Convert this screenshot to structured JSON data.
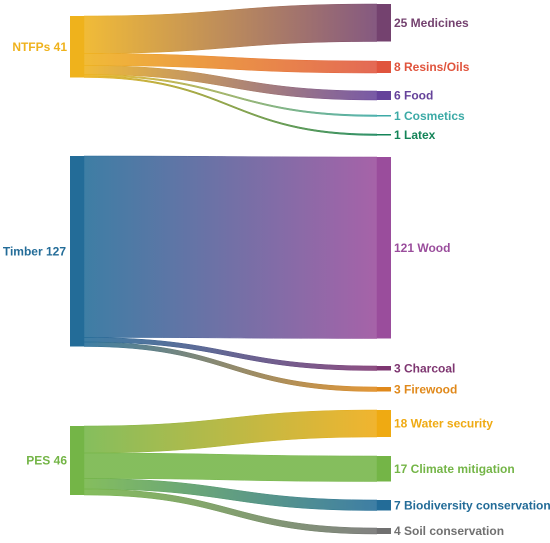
{
  "chart_data": {
    "type": "sankey",
    "sources": [
      {
        "id": "ntfps",
        "label": "NTFPs 41",
        "name": "NTFPs",
        "value": 41,
        "color": "#EFB21C",
        "targets": [
          {
            "id": "medicines",
            "label": "25 Medicines",
            "name": "Medicines",
            "value": 25,
            "color": "#74426F"
          },
          {
            "id": "resins",
            "label": "8 Resins/Oils",
            "name": "Resins/Oils",
            "value": 8,
            "color": "#E0543D"
          },
          {
            "id": "food",
            "label": "6 Food",
            "name": "Food",
            "value": 6,
            "color": "#65429A"
          },
          {
            "id": "cosmetics",
            "label": "1 Cosmetics",
            "name": "Cosmetics",
            "value": 1,
            "color": "#3CAAA6"
          },
          {
            "id": "latex",
            "label": "1 Latex",
            "name": "Latex",
            "value": 1,
            "color": "#148458"
          }
        ]
      },
      {
        "id": "timber",
        "label": "Timber 127",
        "name": "Timber",
        "value": 127,
        "color": "#236C98",
        "targets": [
          {
            "id": "wood",
            "label": "121 Wood",
            "name": "Wood",
            "value": 121,
            "color": "#9A4D9C"
          },
          {
            "id": "charcoal",
            "label": "3 Charcoal",
            "name": "Charcoal",
            "value": 3,
            "color": "#7E3671"
          },
          {
            "id": "firewood",
            "label": "3 Firewood",
            "name": "Firewood",
            "value": 3,
            "color": "#E0891B"
          }
        ]
      },
      {
        "id": "pes",
        "label": "PES 46",
        "name": "PES",
        "value": 46,
        "color": "#74B547",
        "targets": [
          {
            "id": "water",
            "label": "18 Water security",
            "name": "Water security",
            "value": 18,
            "color": "#EFAA12"
          },
          {
            "id": "climate",
            "label": "17 Climate mitigation",
            "name": "Climate mitigation",
            "value": 17,
            "color": "#74B547"
          },
          {
            "id": "biodiversity",
            "label": "7 Biodiversity conservation",
            "name": "Biodiversity conservation",
            "value": 7,
            "color": "#236C98"
          },
          {
            "id": "soil",
            "label": "4 Soil conservation",
            "name": "Soil conservation",
            "value": 4,
            "color": "#707070"
          }
        ]
      }
    ]
  }
}
